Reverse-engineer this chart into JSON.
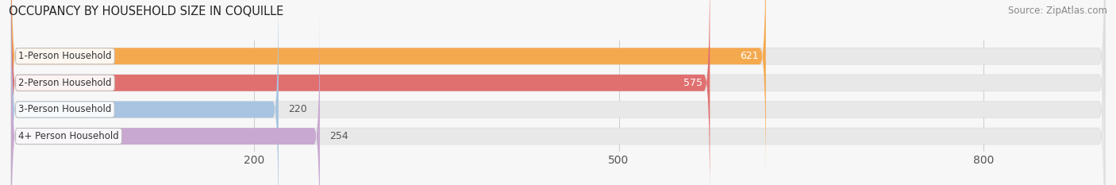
{
  "title": "OCCUPANCY BY HOUSEHOLD SIZE IN COQUILLE",
  "source": "Source: ZipAtlas.com",
  "categories": [
    "1-Person Household",
    "2-Person Household",
    "3-Person Household",
    "4+ Person Household"
  ],
  "values": [
    621,
    575,
    220,
    254
  ],
  "bar_colors": [
    "#F5A94E",
    "#E07070",
    "#A8C4E0",
    "#C8A8D0"
  ],
  "bar_bg_color": "#E8E8E8",
  "xlim": [
    0,
    900
  ],
  "xticks": [
    200,
    500,
    800
  ],
  "tick_label_fontsize": 10,
  "bar_label_fontsize": 9,
  "category_fontsize": 8.5,
  "title_fontsize": 10.5,
  "source_fontsize": 8.5,
  "bar_height": 0.62,
  "figsize": [
    14.06,
    2.33
  ],
  "dpi": 100,
  "bg_color": "#F7F7F7",
  "grid_color": "#CCCCCC"
}
